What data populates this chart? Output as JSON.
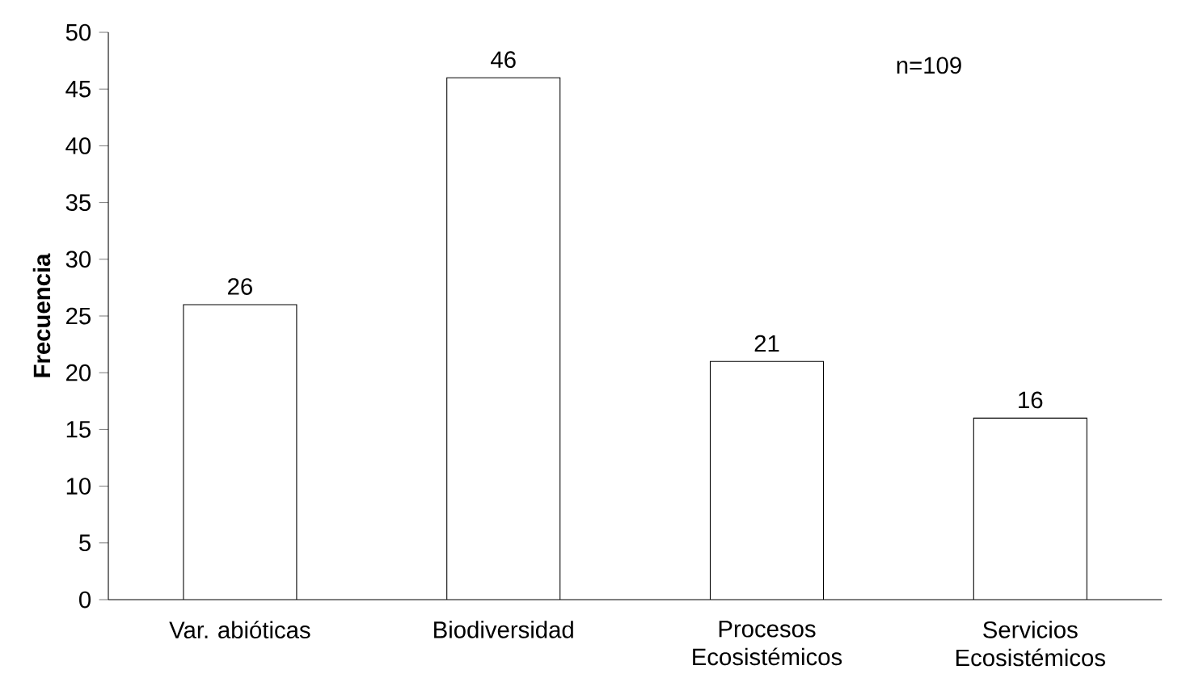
{
  "chart_data": {
    "type": "bar",
    "ylabel": "Frecuencia",
    "categories": [
      "Var. abióticas",
      "Biodiversidad",
      "Procesos Ecosistémicos",
      "Servicios Ecosistémicos"
    ],
    "values": [
      26,
      46,
      21,
      16
    ],
    "color": "#ffffff",
    "ylim": [
      0,
      50
    ],
    "yticks": [
      0,
      5,
      10,
      15,
      20,
      25,
      30,
      35,
      40,
      45,
      50
    ],
    "data_labels": true,
    "annotations": [
      "n=109"
    ]
  }
}
